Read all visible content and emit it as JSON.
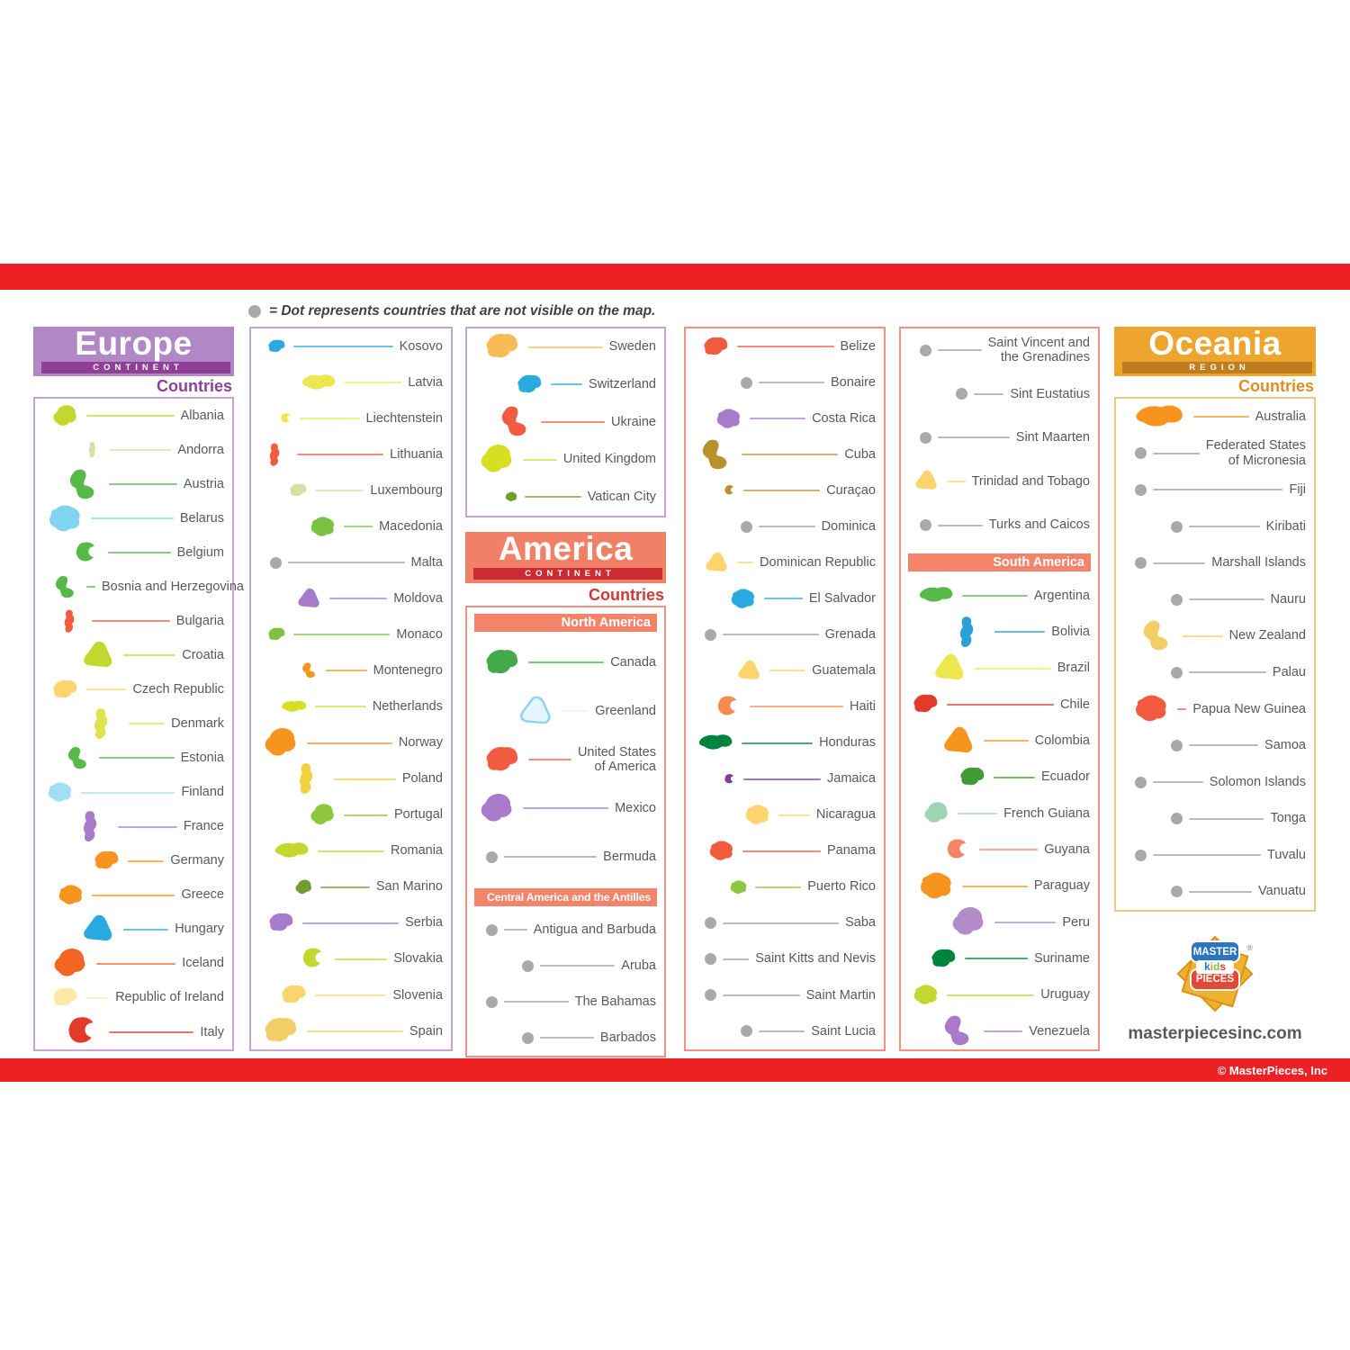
{
  "legend": {
    "text": "= Dot represents countries that are not visible on the map."
  },
  "footer": {
    "copyright": "© MasterPieces, Inc"
  },
  "brand": {
    "top": "MASTER",
    "kids": "kids",
    "bottom": "PIECES",
    "registered": "®",
    "website": "masterpiecesinc.com"
  },
  "palette": {
    "red_bar": "#ed2024",
    "europe_header": "#b287c5",
    "europe_banner": "#8f3f97",
    "europe_border": "#c9a3d4",
    "america_header": "#f28066",
    "america_banner": "#cb2b31",
    "america_countries_text": "#cf3a36",
    "america_border": "#f29180",
    "inner_banner": "#f3846a",
    "oceania_header": "#eea52f",
    "oceania_banner": "#c07d1e",
    "oceania_countries_text": "#e08d1f",
    "oceania_border": "#e9cc83",
    "dot_gray": "#a7a9ac",
    "label_gray": "#58595b",
    "kids_letter_colors": [
      "#2e75bf",
      "#f7941d",
      "#7cc242",
      "#e0392d"
    ]
  },
  "sections": {
    "europe": {
      "title": "Europe",
      "subtitle": "CONTINENT",
      "countries_label": "Countries",
      "col1": [
        {
          "name": "Albania",
          "color": "#c3d82e",
          "size": "m"
        },
        {
          "name": "Andorra",
          "color": "#cfe3a3",
          "size": "s"
        },
        {
          "name": "Austria",
          "color": "#56b948",
          "size": "l"
        },
        {
          "name": "Belarus",
          "color": "#7fd4f2",
          "size": "l"
        },
        {
          "name": "Belgium",
          "color": "#56b948",
          "size": "m"
        },
        {
          "name": "Bosnia and Herzegovina",
          "color": "#56b948",
          "size": "m"
        },
        {
          "name": "Bulgaria",
          "color": "#f15b40",
          "size": "m"
        },
        {
          "name": "Croatia",
          "color": "#c3d82e",
          "size": "l"
        },
        {
          "name": "Czech Republic",
          "color": "#fbd46d",
          "size": "m"
        },
        {
          "name": "Denmark",
          "color": "#dfe24b",
          "size": "l"
        },
        {
          "name": "Estonia",
          "color": "#56b948",
          "size": "m"
        },
        {
          "name": "Finland",
          "color": "#a5ddf3",
          "size": "m"
        },
        {
          "name": "France",
          "color": "#a77bc9",
          "size": "l"
        },
        {
          "name": "Germany",
          "color": "#f7941d",
          "size": "m"
        },
        {
          "name": "Greece",
          "color": "#f7941d",
          "size": "m"
        },
        {
          "name": "Hungary",
          "color": "#29abe2",
          "size": "l"
        },
        {
          "name": "Iceland",
          "color": "#f26522",
          "size": "l"
        },
        {
          "name": "Republic of Ireland",
          "color": "#fce9a6",
          "size": "m"
        },
        {
          "name": "Italy",
          "color": "#e33a2a",
          "size": "l"
        }
      ],
      "col2": [
        {
          "name": "Kosovo",
          "color": "#29abe2",
          "size": "s"
        },
        {
          "name": "Latvia",
          "color": "#ede74f",
          "size": "l"
        },
        {
          "name": "Liechtenstein",
          "color": "#ede74f",
          "size": "xs"
        },
        {
          "name": "Lithuania",
          "color": "#f15b40",
          "size": "m"
        },
        {
          "name": "Luxembourg",
          "color": "#cfe3a3",
          "size": "s"
        },
        {
          "name": "Macedonia",
          "color": "#7cc242",
          "size": "m"
        },
        {
          "name": "Malta",
          "dot": true
        },
        {
          "name": "Moldova",
          "color": "#a77bc9",
          "size": "m"
        },
        {
          "name": "Monaco",
          "color": "#7cc242",
          "size": "s"
        },
        {
          "name": "Montenegro",
          "color": "#f7941d",
          "size": "s"
        },
        {
          "name": "Netherlands",
          "color": "#d7df23",
          "size": "m"
        },
        {
          "name": "Norway",
          "color": "#f7941d",
          "size": "l"
        },
        {
          "name": "Poland",
          "color": "#f2d23c",
          "size": "l"
        },
        {
          "name": "Portugal",
          "color": "#8dc63f",
          "size": "m"
        },
        {
          "name": "Romania",
          "color": "#c3d82e",
          "size": "l"
        },
        {
          "name": "San Marino",
          "color": "#6f9e2f",
          "size": "s"
        },
        {
          "name": "Serbia",
          "color": "#a77bc9",
          "size": "m"
        },
        {
          "name": "Slovakia",
          "color": "#c3d82e",
          "size": "m"
        },
        {
          "name": "Slovenia",
          "color": "#fbd46d",
          "size": "m"
        },
        {
          "name": "Spain",
          "color": "#f2cd68",
          "size": "l"
        }
      ],
      "col3": [
        {
          "name": "Sweden",
          "color": "#f9bb56",
          "size": "l"
        },
        {
          "name": "Switzerland",
          "color": "#29abe2",
          "size": "m"
        },
        {
          "name": "Ukraine",
          "color": "#f15b40",
          "size": "l"
        },
        {
          "name": "United Kingdom",
          "color": "#d7df23",
          "size": "l"
        },
        {
          "name": "Vatican City",
          "color": "#6f9e2f",
          "size": "xs"
        }
      ]
    },
    "america": {
      "title": "America",
      "subtitle": "CONTINENT",
      "countries_label": "Countries",
      "banners": {
        "north": "North America",
        "central": "Central America and the Antilles",
        "south": "South America"
      },
      "north": [
        {
          "name": "Canada",
          "color": "#44a948",
          "size": "l"
        },
        {
          "name": "Greenland",
          "color": "#e4f5fc",
          "stroke": "#8ed4ee",
          "size": "l"
        },
        {
          "name": "United States\nof America",
          "color": "#f15b40",
          "size": "l"
        },
        {
          "name": "Mexico",
          "color": "#a77bc9",
          "size": "l"
        },
        {
          "name": "Bermuda",
          "dot": true
        }
      ],
      "central": [
        {
          "name": "Antigua and Barbuda",
          "dot": true
        },
        {
          "name": "Aruba",
          "dot": true
        },
        {
          "name": "The Bahamas",
          "dot": true
        },
        {
          "name": "Barbados",
          "dot": true
        }
      ],
      "col4": [
        {
          "name": "Belize",
          "color": "#f15b40",
          "size": "m"
        },
        {
          "name": "Bonaire",
          "dot": true
        },
        {
          "name": "Costa Rica",
          "color": "#a77bc9",
          "size": "m"
        },
        {
          "name": "Cuba",
          "color": "#b8912f",
          "size": "l"
        },
        {
          "name": "Curaçao",
          "color": "#b8912f",
          "size": "xs"
        },
        {
          "name": "Dominica",
          "dot": true
        },
        {
          "name": "Dominican Republic",
          "color": "#fbd46d",
          "size": "m"
        },
        {
          "name": "El Salvador",
          "color": "#29abe2",
          "size": "m"
        },
        {
          "name": "Grenada",
          "dot": true
        },
        {
          "name": "Guatemala",
          "color": "#fbd46d",
          "size": "m"
        },
        {
          "name": "Haiti",
          "color": "#f68b4e",
          "size": "m"
        },
        {
          "name": "Honduras",
          "color": "#00843d",
          "size": "l"
        },
        {
          "name": "Jamaica",
          "color": "#7f3f98",
          "size": "xs"
        },
        {
          "name": "Nicaragua",
          "color": "#fbd46d",
          "size": "m"
        },
        {
          "name": "Panama",
          "color": "#f15b40",
          "size": "m"
        },
        {
          "name": "Puerto Rico",
          "color": "#8dc63f",
          "size": "s"
        },
        {
          "name": "Saba",
          "dot": true
        },
        {
          "name": "Saint Kitts and Nevis",
          "dot": true
        },
        {
          "name": "Saint Martin",
          "dot": true
        },
        {
          "name": "Saint Lucia",
          "dot": true
        }
      ],
      "col5_top": [
        {
          "name": "Saint Vincent and\nthe Grenadines",
          "dot": true
        },
        {
          "name": "Sint Eustatius",
          "dot": true
        },
        {
          "name": "Sint Maarten",
          "dot": true
        },
        {
          "name": "Trinidad and Tobago",
          "color": "#fbd46d",
          "size": "m"
        },
        {
          "name": "Turks and Caicos",
          "dot": true
        }
      ],
      "south": [
        {
          "name": "Argentina",
          "color": "#56b948",
          "size": "l"
        },
        {
          "name": "Bolivia",
          "color": "#2d9fd8",
          "size": "l"
        },
        {
          "name": "Brazil",
          "color": "#ede74f",
          "size": "l"
        },
        {
          "name": "Chile",
          "color": "#e33a2a",
          "size": "m"
        },
        {
          "name": "Colombia",
          "color": "#f7941d",
          "size": "l"
        },
        {
          "name": "Ecuador",
          "color": "#3f9c35",
          "size": "m"
        },
        {
          "name": "French Guiana",
          "color": "#9fd5b5",
          "size": "m"
        },
        {
          "name": "Guyana",
          "color": "#f58466",
          "size": "m"
        },
        {
          "name": "Paraguay",
          "color": "#f7941d",
          "size": "l"
        },
        {
          "name": "Peru",
          "color": "#b18cc9",
          "size": "l"
        },
        {
          "name": "Suriname",
          "color": "#00843d",
          "size": "m"
        },
        {
          "name": "Uruguay",
          "color": "#c3d82e",
          "size": "m"
        },
        {
          "name": "Venezuela",
          "color": "#a77bc9",
          "size": "l"
        }
      ]
    },
    "oceania": {
      "title": "Oceania",
      "subtitle": "REGION",
      "countries_label": "Countries",
      "countries": [
        {
          "name": "Australia",
          "color": "#f7941d",
          "size": "xl"
        },
        {
          "name": "Federated States\nof Micronesia",
          "dot": true
        },
        {
          "name": "Fiji",
          "dot": true
        },
        {
          "name": "Kiribati",
          "dot": true
        },
        {
          "name": "Marshall Islands",
          "dot": true
        },
        {
          "name": "Nauru",
          "dot": true
        },
        {
          "name": "New Zealand",
          "color": "#f2cd68",
          "size": "l"
        },
        {
          "name": "Palau",
          "dot": true
        },
        {
          "name": "Papua New Guinea",
          "color": "#f15b40",
          "size": "l"
        },
        {
          "name": "Samoa",
          "dot": true
        },
        {
          "name": "Solomon Islands",
          "dot": true
        },
        {
          "name": "Tonga",
          "dot": true
        },
        {
          "name": "Tuvalu",
          "dot": true
        },
        {
          "name": "Vanuatu",
          "dot": true
        }
      ]
    }
  }
}
